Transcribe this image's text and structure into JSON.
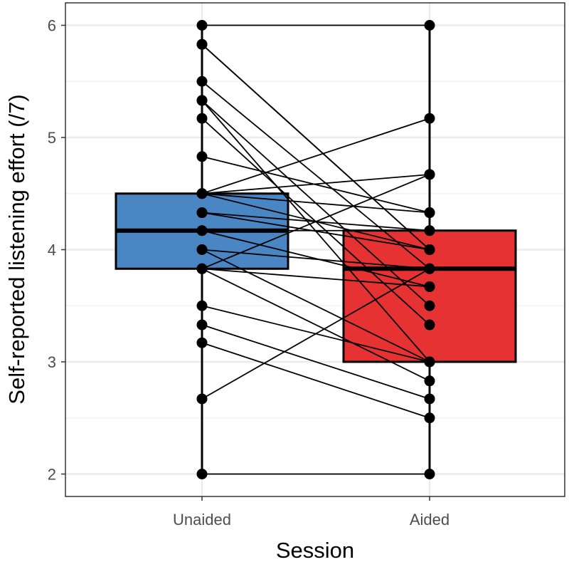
{
  "chart_data": {
    "type": "boxplot-paired",
    "title": "",
    "xlabel": "Session",
    "ylabel": "Self-reported listening effort (/7)",
    "categories": [
      "Unaided",
      "Aided"
    ],
    "ylim": [
      1.8,
      6.2
    ],
    "yticks": [
      2,
      3,
      4,
      5,
      6
    ],
    "ytick_labels": [
      "2",
      "3",
      "4",
      "5",
      "6"
    ],
    "grid": true,
    "legend": "none",
    "boxes": [
      {
        "name": "Unaided",
        "min": 2.0,
        "q1": 3.83,
        "median": 4.17,
        "q3": 4.5,
        "max": 6.0,
        "color": "#4a86c3"
      },
      {
        "name": "Aided",
        "min": 2.0,
        "q1": 3.0,
        "median": 3.83,
        "q3": 4.17,
        "max": 6.0,
        "color": "#e63232"
      }
    ],
    "pairs": [
      {
        "unaided": 6.0,
        "aided": 6.0
      },
      {
        "unaided": 5.83,
        "aided": 4.0
      },
      {
        "unaided": 5.83,
        "aided": 4.0
      },
      {
        "unaided": 5.5,
        "aided": 3.83
      },
      {
        "unaided": 5.33,
        "aided": 3.5
      },
      {
        "unaided": 5.33,
        "aided": 3.0
      },
      {
        "unaided": 5.17,
        "aided": 3.33
      },
      {
        "unaided": 4.83,
        "aided": 4.33
      },
      {
        "unaided": 4.5,
        "aided": 5.17
      },
      {
        "unaided": 4.5,
        "aided": 4.67
      },
      {
        "unaided": 4.5,
        "aided": 4.33
      },
      {
        "unaided": 4.5,
        "aided": 4.0
      },
      {
        "unaided": 4.33,
        "aided": 4.17
      },
      {
        "unaided": 4.33,
        "aided": 4.0
      },
      {
        "unaided": 4.17,
        "aided": 4.17
      },
      {
        "unaided": 4.17,
        "aided": 3.67
      },
      {
        "unaided": 4.0,
        "aided": 3.83
      },
      {
        "unaided": 4.0,
        "aided": 3.0
      },
      {
        "unaided": 3.83,
        "aided": 4.67
      },
      {
        "unaided": 3.83,
        "aided": 3.67
      },
      {
        "unaided": 3.83,
        "aided": 2.83
      },
      {
        "unaided": 3.5,
        "aided": 3.0
      },
      {
        "unaided": 3.33,
        "aided": 2.67
      },
      {
        "unaided": 3.17,
        "aided": 2.5
      },
      {
        "unaided": 2.67,
        "aided": 3.83
      },
      {
        "unaided": 2.0,
        "aided": 2.0
      }
    ]
  }
}
